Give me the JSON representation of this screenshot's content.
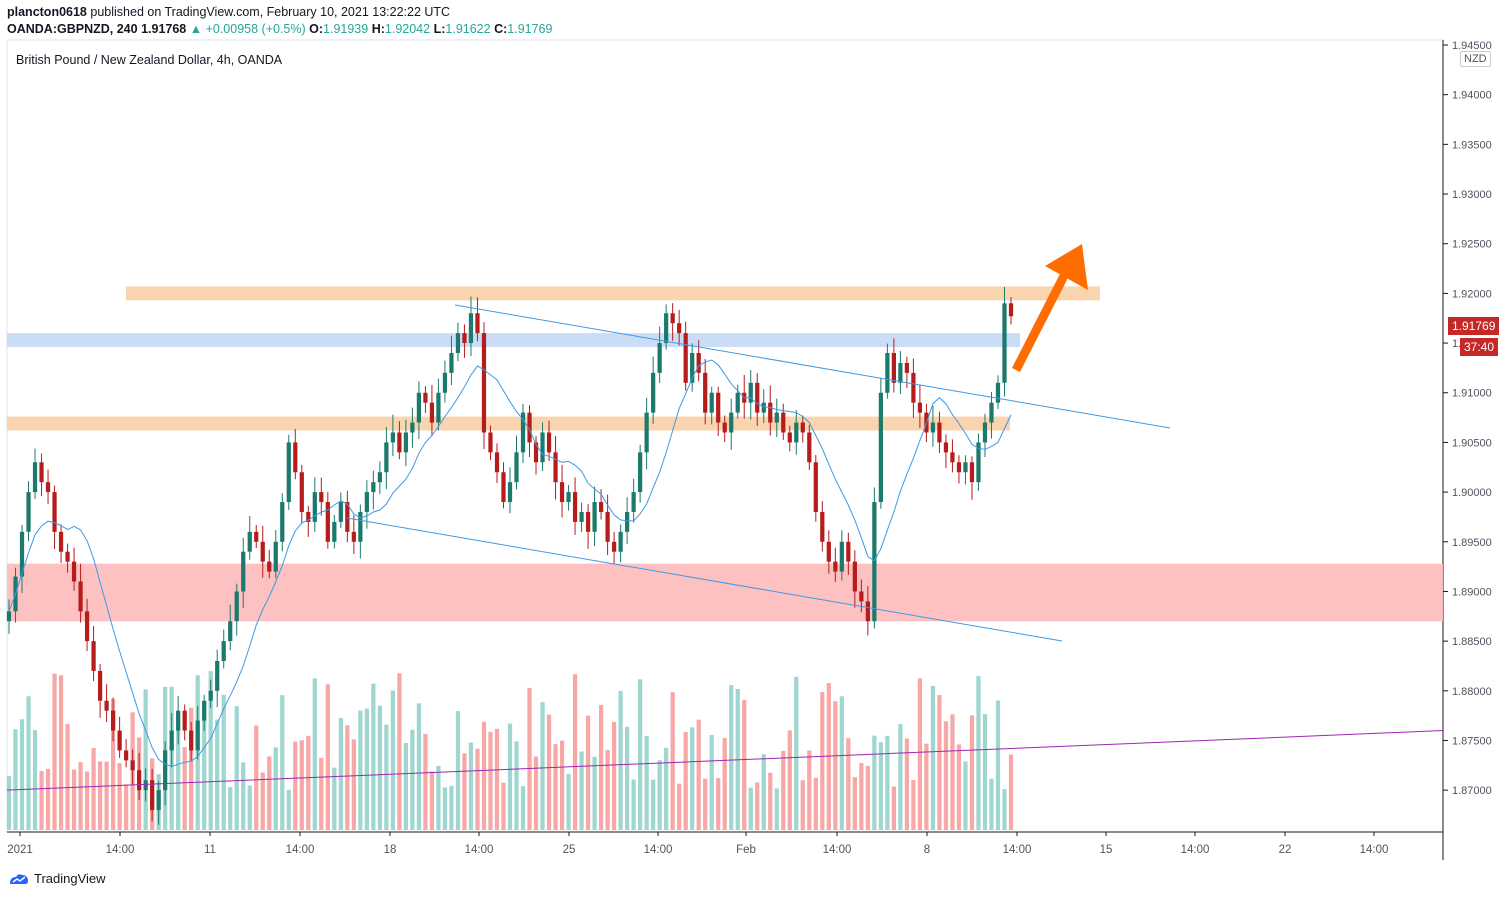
{
  "header": {
    "publisher": "plancton0618",
    "published_text": "published on TradingView.com, February 10, 2021 13:22:22 UTC",
    "symbol": "OANDA:GBPNZD, 240",
    "last": "1.91768",
    "change": "▲ +0.00958 (+0.5%)",
    "o_label": "O:",
    "o_val": "1.91939",
    "h_label": "H:",
    "h_val": "1.92042",
    "l_label": "L:",
    "l_val": "1.91622",
    "c_label": "C:",
    "c_val": "1.91769"
  },
  "chart_title": "British Pound / New Zealand Dollar, 4h, OANDA",
  "currency_badge": "NZD",
  "current_price_label": "1.91769",
  "countdown_label": "37:40",
  "brand": "TradingView",
  "colors": {
    "up": "#26a69a",
    "down": "#ef5350",
    "candle_body_up": "#1b7a6d",
    "candle_body_down": "#b71c1c",
    "resistance_zone": "#f8cfa6",
    "blue_zone": "#c5d8f5",
    "support_zone": "#fdbaba",
    "channel_line": "#3d9ae5",
    "ma_line": "#3d9ae5",
    "volume_ma": "#9c27b0",
    "arrow": "#ff6d00"
  },
  "chart_data": {
    "type": "candlestick",
    "ylim": [
      1.8675,
      1.945
    ],
    "y_ticks": [
      "1.94500",
      "1.94000",
      "1.93500",
      "1.93000",
      "1.92500",
      "1.92000",
      "1.91500",
      "1.91000",
      "1.90500",
      "1.90000",
      "1.89500",
      "1.89000",
      "1.88500",
      "1.88000",
      "1.87500",
      "1.87000"
    ],
    "x_ticks": [
      "2021",
      "14:00",
      "11",
      "14:00",
      "18",
      "14:00",
      "25",
      "14:00",
      "Feb",
      "14:00",
      "8",
      "14:00",
      "15",
      "14:00",
      "22",
      "14:00"
    ],
    "zones": [
      {
        "name": "resistance",
        "y1": 1.9207,
        "y2": 1.9193
      },
      {
        "name": "blue",
        "y1": 1.916,
        "y2": 1.9146
      },
      {
        "name": "middle",
        "y1": 1.9076,
        "y2": 1.9062
      },
      {
        "name": "support",
        "y1": 1.8928,
        "y2": 1.887
      }
    ],
    "closes": [
      1.888,
      1.8915,
      1.896,
      1.9,
      1.903,
      1.901,
      1.9,
      1.896,
      1.894,
      1.893,
      1.891,
      1.888,
      1.885,
      1.882,
      1.879,
      1.878,
      1.876,
      1.874,
      1.873,
      1.872,
      1.87,
      1.871,
      1.868,
      1.87,
      1.874,
      1.876,
      1.878,
      1.876,
      1.874,
      1.877,
      1.879,
      1.88,
      1.883,
      1.885,
      1.887,
      1.89,
      1.894,
      1.896,
      1.895,
      1.893,
      1.892,
      1.895,
      1.899,
      1.905,
      1.902,
      1.898,
      1.897,
      1.9,
      1.899,
      1.895,
      1.897,
      1.899,
      1.896,
      1.895,
      1.898,
      1.9,
      1.901,
      1.902,
      1.905,
      1.906,
      1.904,
      1.906,
      1.907,
      1.91,
      1.909,
      1.907,
      1.91,
      1.912,
      1.914,
      1.916,
      1.915,
      1.918,
      1.916,
      1.906,
      1.904,
      1.902,
      1.899,
      1.901,
      1.904,
      1.908,
      1.905,
      1.903,
      1.906,
      1.904,
      1.901,
      1.899,
      1.9,
      1.897,
      1.898,
      1.896,
      1.899,
      1.898,
      1.895,
      1.894,
      1.896,
      1.898,
      1.9,
      1.904,
      1.908,
      1.912,
      1.915,
      1.918,
      1.917,
      1.916,
      1.911,
      1.914,
      1.912,
      1.908,
      1.91,
      1.907,
      1.906,
      1.908,
      1.91,
      1.909,
      1.911,
      1.908,
      1.909,
      1.907,
      1.908,
      1.906,
      1.905,
      1.907,
      1.906,
      1.903,
      1.898,
      1.895,
      1.893,
      1.892,
      1.895,
      1.893,
      1.89,
      1.889,
      1.887,
      1.899,
      1.91,
      1.914,
      1.911,
      1.913,
      1.912,
      1.909,
      1.908,
      1.906,
      1.907,
      1.905,
      1.904,
      1.903,
      1.902,
      1.903,
      1.901,
      1.905,
      1.907,
      1.909,
      1.911,
      1.919,
      1.9177
    ],
    "volume_ma": {
      "start": 1.87,
      "end": 1.876
    }
  }
}
